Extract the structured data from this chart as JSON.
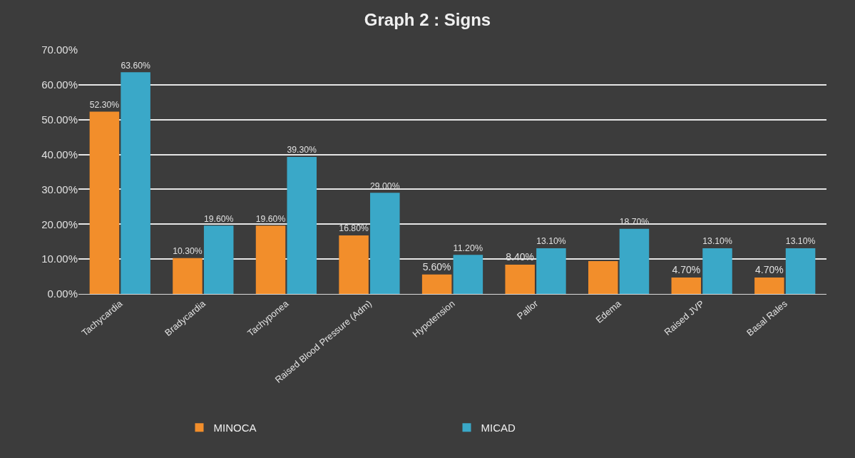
{
  "chart_data": {
    "type": "bar",
    "title": "Graph 2 : Signs",
    "categories": [
      "Tachycardia",
      "Bradycardia",
      "Tachyponea",
      "Raised Blood Pressure (Adm)",
      "Hypotension",
      "Pallor",
      "Edema",
      "Raised JVP",
      "Basal Rales"
    ],
    "series": [
      {
        "name": "MINOCA",
        "color": "#f28e2b",
        "values": [
          52.3,
          10.3,
          19.6,
          16.8,
          5.6,
          8.4,
          9.4,
          4.7,
          4.7
        ],
        "value_labels": [
          "52.30%",
          "10.30%",
          "19.60%",
          "16.80%",
          "5.60%",
          "8.40%",
          null,
          "4.70%",
          "4.70%"
        ]
      },
      {
        "name": "MICAD",
        "color": "#3aa8c8",
        "values": [
          63.6,
          19.6,
          39.3,
          29.0,
          11.2,
          13.1,
          18.7,
          13.1,
          13.1
        ],
        "value_labels": [
          "63.60%",
          "19.60%",
          "39.30%",
          "29.00%",
          "11.20%",
          "13.10%",
          "18.70%",
          "13.10%",
          "13.10%"
        ]
      }
    ],
    "ylim": [
      0,
      70
    ],
    "yticks": [
      {
        "value": 0,
        "label": "0.00%"
      },
      {
        "value": 10,
        "label": "10.00%"
      },
      {
        "value": 20,
        "label": "20.00%"
      },
      {
        "value": 30,
        "label": "30.00%"
      },
      {
        "value": 40,
        "label": "40.00%"
      },
      {
        "value": 50,
        "label": "50.00%"
      },
      {
        "value": 60,
        "label": "60.00%"
      },
      {
        "value": 70,
        "label": "70.00%"
      }
    ],
    "grid": "y",
    "legend": "bottom"
  }
}
